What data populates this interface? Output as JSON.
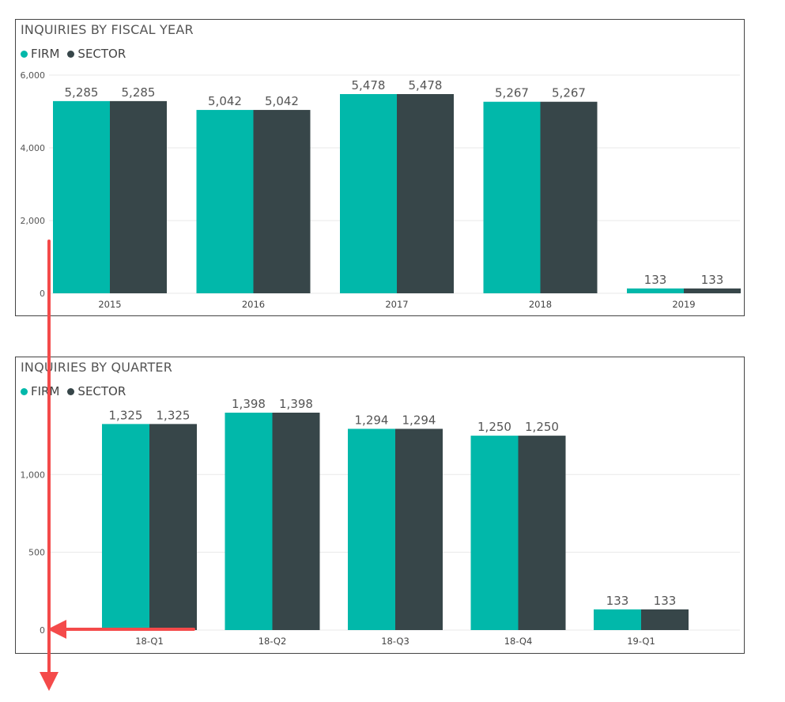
{
  "colors": {
    "firm": "#01B8AA",
    "sector": "#374649",
    "grid": "#e8e8e8",
    "annotation": "#f44a4a"
  },
  "chart_data": [
    {
      "type": "bar",
      "title": "INQUIRIES BY FISCAL YEAR",
      "categories": [
        "2015",
        "2016",
        "2017",
        "2018",
        "2019"
      ],
      "series": [
        {
          "name": "FIRM",
          "values": [
            5285,
            5042,
            5478,
            5267,
            133
          ],
          "labels": [
            "5,285",
            "5,042",
            "5,478",
            "5,267",
            "133"
          ]
        },
        {
          "name": "SECTOR",
          "values": [
            5285,
            5042,
            5478,
            5267,
            133
          ],
          "labels": [
            "5,285",
            "5,042",
            "5,478",
            "5,267",
            "133"
          ]
        }
      ],
      "yticks": [
        0,
        2000,
        4000,
        6000
      ],
      "ytick_labels": [
        "0",
        "2,000",
        "4,000",
        "6,000"
      ],
      "ylim": [
        0,
        6000
      ],
      "legend": "top-left",
      "grid": true
    },
    {
      "type": "bar",
      "title": "INQUIRIES BY QUARTER",
      "categories": [
        "18-Q1",
        "18-Q2",
        "18-Q3",
        "18-Q4",
        "19-Q1"
      ],
      "series": [
        {
          "name": "FIRM",
          "values": [
            1325,
            1398,
            1294,
            1250,
            133
          ],
          "labels": [
            "1,325",
            "1,398",
            "1,294",
            "1,250",
            "133"
          ]
        },
        {
          "name": "SECTOR",
          "values": [
            1325,
            1398,
            1294,
            1250,
            133
          ],
          "labels": [
            "1,325",
            "1,398",
            "1,294",
            "1,250",
            "133"
          ]
        }
      ],
      "yticks": [
        0,
        500,
        1000
      ],
      "ytick_labels": [
        "0",
        "500",
        "1,000"
      ],
      "ylim": [
        0,
        1398
      ],
      "legend": "top-left",
      "grid": true
    }
  ]
}
